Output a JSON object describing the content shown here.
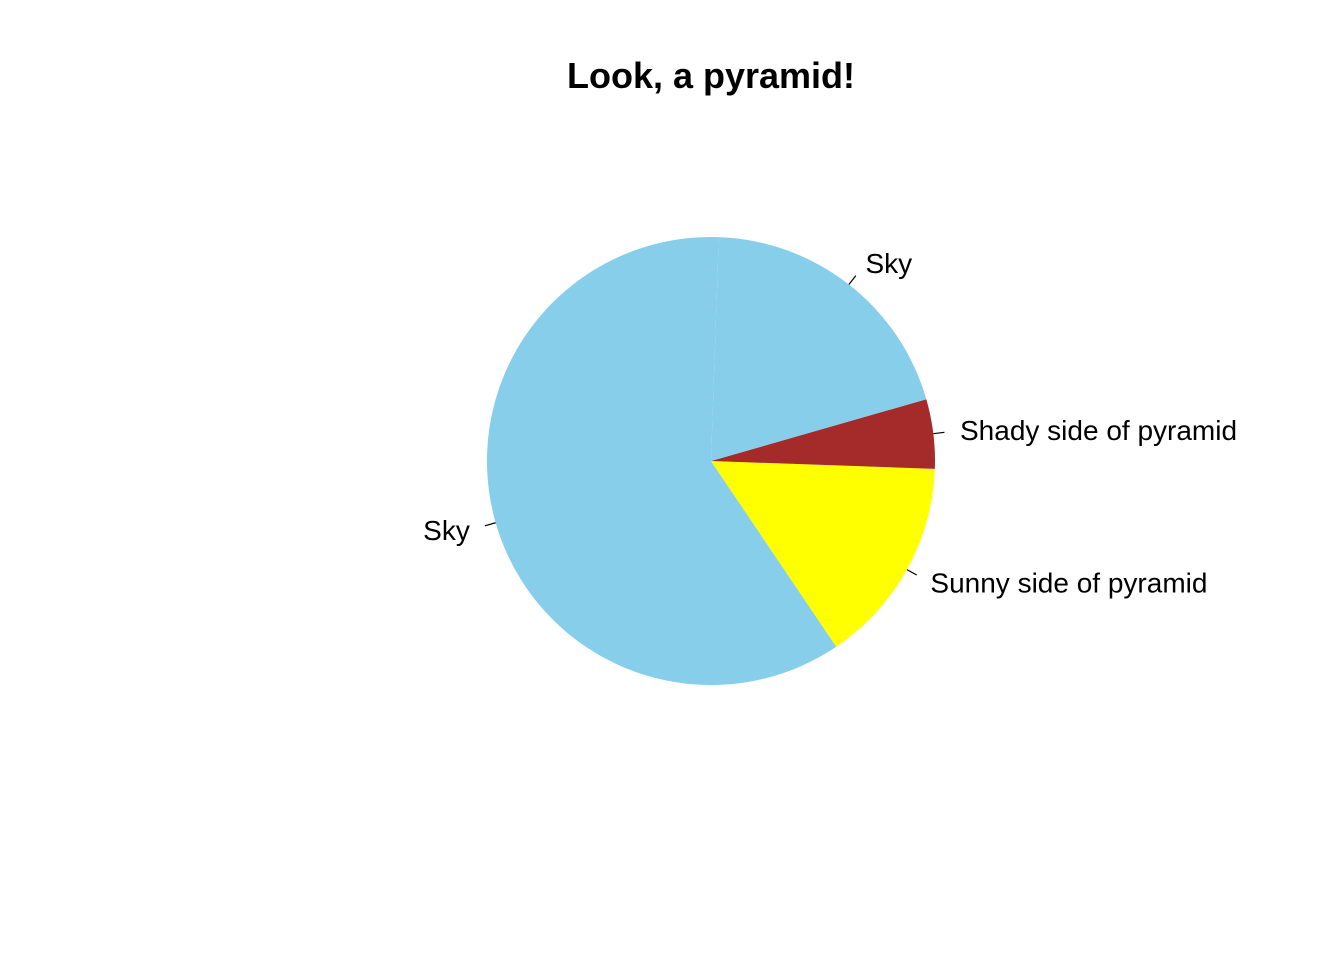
{
  "chart_data": {
    "type": "pie",
    "title": "Look, a pyramid!",
    "labels": [
      "Sky",
      "Sunny side of pyramid",
      "Shady side of pyramid",
      "Sky"
    ],
    "values": [
      0.6,
      0.15,
      0.05,
      0.2
    ],
    "colors": [
      "#87CEEB",
      "#FFFF00",
      "#A52A2A",
      "#87CEEB"
    ],
    "start_angle_deg": 88,
    "direction": "counterclockwise",
    "legend": "none"
  }
}
